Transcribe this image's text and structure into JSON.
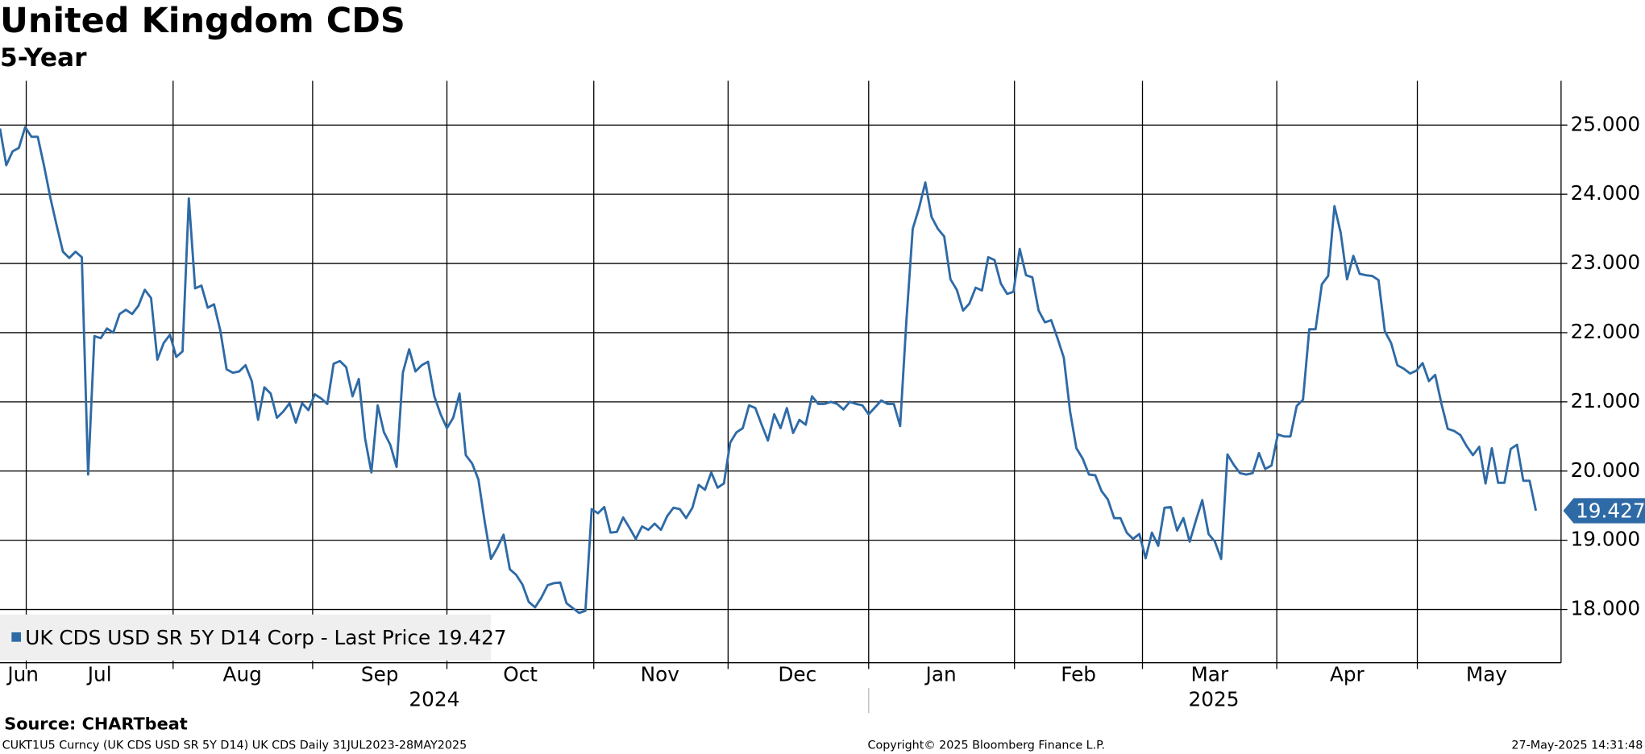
{
  "chart_data": {
    "type": "line",
    "title": "United Kingdom CDS",
    "subtitle": "5-Year",
    "categories_months": [
      "Jun",
      "Jul",
      "Aug",
      "Sep",
      "Oct",
      "Nov",
      "Dec",
      "Jan",
      "Feb",
      "Mar",
      "Apr",
      "May"
    ],
    "year_labels": [
      "2024",
      "2025"
    ],
    "series": [
      {
        "name": "UK CDS USD SR 5Y D14 Corp - Last Price 19.427",
        "color": "#2e6aa6",
        "values": [
          24.95,
          24.42,
          24.62,
          24.67,
          24.97,
          24.83,
          24.83,
          24.41,
          23.95,
          23.55,
          23.17,
          23.08,
          23.17,
          23.09,
          19.95,
          21.95,
          21.92,
          22.06,
          22.0,
          22.27,
          22.33,
          22.27,
          22.39,
          22.62,
          22.5,
          21.61,
          21.85,
          21.97,
          21.65,
          21.73,
          23.94,
          22.64,
          22.68,
          22.36,
          22.41,
          22.03,
          21.47,
          21.42,
          21.44,
          21.53,
          21.3,
          20.74,
          21.21,
          21.12,
          20.77,
          20.86,
          20.98,
          20.7,
          20.98,
          20.88,
          21.11,
          21.05,
          20.97,
          21.55,
          21.59,
          21.5,
          21.08,
          21.33,
          20.47,
          19.98,
          20.95,
          20.56,
          20.38,
          20.06,
          21.42,
          21.76,
          21.44,
          21.53,
          21.58,
          21.08,
          20.82,
          20.62,
          20.77,
          21.12,
          20.23,
          20.11,
          19.88,
          19.27,
          18.73,
          18.89,
          19.08,
          18.58,
          18.5,
          18.36,
          18.11,
          18.03,
          18.17,
          18.35,
          18.38,
          18.39,
          18.09,
          18.02,
          17.95,
          17.98,
          19.45,
          19.39,
          19.48,
          19.11,
          19.12,
          19.33,
          19.18,
          19.02,
          19.2,
          19.15,
          19.24,
          19.15,
          19.35,
          19.47,
          19.45,
          19.32,
          19.47,
          19.8,
          19.73,
          19.98,
          19.76,
          19.82,
          20.41,
          20.56,
          20.62,
          20.95,
          20.91,
          20.67,
          20.44,
          20.82,
          20.62,
          20.91,
          20.55,
          20.74,
          20.67,
          21.08,
          20.97,
          20.97,
          21.0,
          20.97,
          20.89,
          21.0,
          20.97,
          20.95,
          20.82,
          20.92,
          21.02,
          20.97,
          20.97,
          20.65,
          22.18,
          23.5,
          23.8,
          24.17,
          23.67,
          23.5,
          23.39,
          22.77,
          22.62,
          22.32,
          22.42,
          22.65,
          22.61,
          23.09,
          23.05,
          22.71,
          22.56,
          22.59,
          23.21,
          22.83,
          22.8,
          22.32,
          22.15,
          22.18,
          21.92,
          21.64,
          20.86,
          20.33,
          20.18,
          19.95,
          19.94,
          19.71,
          19.59,
          19.32,
          19.32,
          19.11,
          19.02,
          19.09,
          18.74,
          19.11,
          18.92,
          19.47,
          19.48,
          19.14,
          19.32,
          18.98,
          19.29,
          19.58,
          19.09,
          18.98,
          18.73,
          20.24,
          20.09,
          19.97,
          19.95,
          19.97,
          20.26,
          20.03,
          20.08,
          20.53,
          20.5,
          20.5,
          20.94,
          21.03,
          22.05,
          22.05,
          22.7,
          22.82,
          23.83,
          23.44,
          22.77,
          23.11,
          22.85,
          22.83,
          22.82,
          22.76,
          22.02,
          21.85,
          21.53,
          21.48,
          21.41,
          21.45,
          21.56,
          21.3,
          21.39,
          20.97,
          20.61,
          20.58,
          20.52,
          20.36,
          20.23,
          20.35,
          19.82,
          20.33,
          19.83,
          19.83,
          20.32,
          20.38,
          19.86,
          19.86,
          19.427
        ]
      }
    ],
    "last_price": {
      "value": 19.427,
      "label": "19.427"
    },
    "ylim": [
      17.23,
      25.64
    ],
    "yticks": [
      {
        "value": 18,
        "label": "18.000"
      },
      {
        "value": 19,
        "label": "19.000"
      },
      {
        "value": 20,
        "label": "20.000"
      },
      {
        "value": 21,
        "label": "21.000"
      },
      {
        "value": 22,
        "label": "22.000"
      },
      {
        "value": 23,
        "label": "23.000"
      },
      {
        "value": 24,
        "label": "24.000"
      },
      {
        "value": 25,
        "label": "25.000"
      }
    ],
    "grid": true,
    "legend": "bottom-left",
    "source": "Source: CHARTbeat",
    "footer_left": "CUKT1U5 Curncy (UK CDS USD SR 5Y D14) UK CDS  Daily 31JUL2023-28MAY2025",
    "footer_center": "Copyright© 2025 Bloomberg Finance L.P.",
    "footer_right": "27-May-2025 14:31:48"
  }
}
